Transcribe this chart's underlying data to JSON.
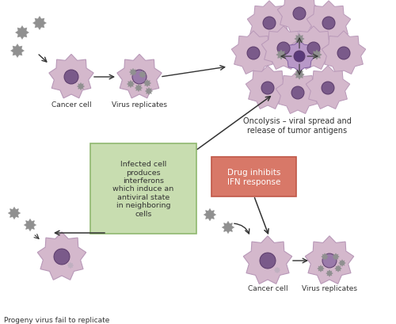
{
  "bg_color": "#ffffff",
  "cell_color": "#d4b8cc",
  "cell_edge_color": "#b898b8",
  "nucleus_color": "#7a5a8a",
  "nucleus_edge": "#5a3a6a",
  "virus_color": "#909090",
  "green_box_color": "#c8ddb0",
  "green_box_edge": "#90b870",
  "red_box_color": "#d87868",
  "red_box_edge": "#c05848",
  "arrow_color": "#333333",
  "text_color": "#333333",
  "label_cancer": "Cancer cell",
  "label_virus": "Virus replicates",
  "label_oncolysis": "Oncolysis – viral spread and\nrelease of tumor antigens",
  "label_green_box": "Infected cell\nproduces\ninterferons\nwhich induce an\nantiviral state\nin neighboring\ncells",
  "label_red_box": "Drug inhibits\nIFN response",
  "label_progeny": "Progeny virus fail to replicate",
  "label_cancer2": "Cancer cell",
  "label_virus2": "Virus replicates"
}
